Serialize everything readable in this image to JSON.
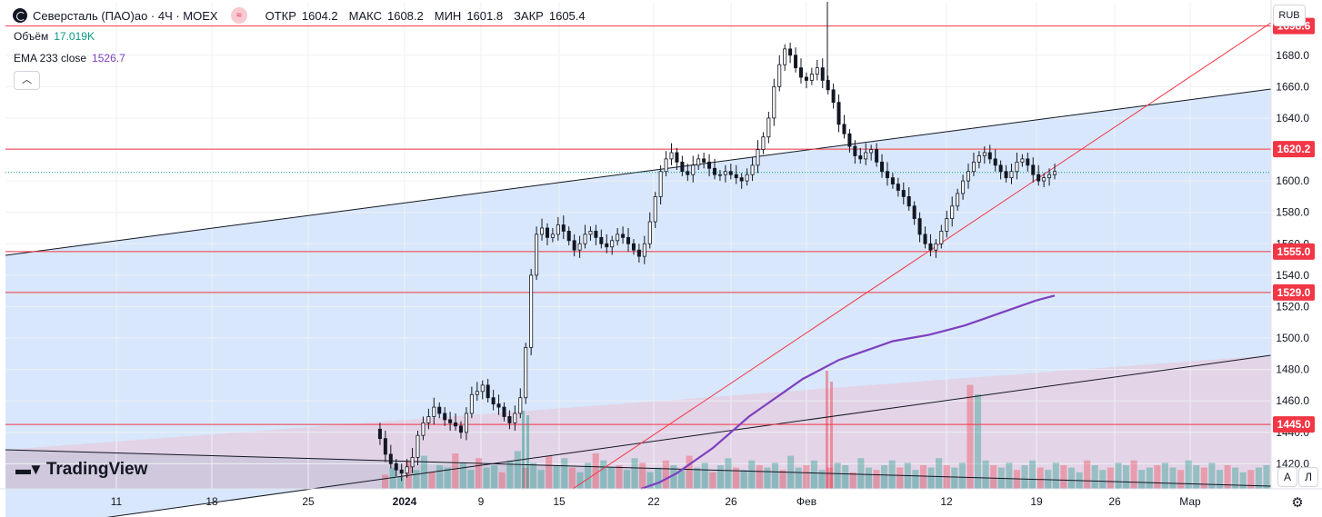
{
  "header": {
    "symbol": "Северсталь (ПАО)ао · 4Ч · MOEX",
    "badge_icon": "approx-equal-icon",
    "ohlc": [
      {
        "label": "ОТКР",
        "value": "1604.2"
      },
      {
        "label": "МАКС",
        "value": "1608.2"
      },
      {
        "label": "МИН",
        "value": "1601.8"
      },
      {
        "label": "ЗАКР",
        "value": "1605.4"
      }
    ]
  },
  "volume_legend": {
    "label": "Объём",
    "value": "17.019K"
  },
  "ema_legend": {
    "label": "EMA 233 close",
    "value": "1526.7"
  },
  "currency": "RUB",
  "corner_buttons": {
    "auto": "A",
    "log": "Л"
  },
  "brand": "TradingView",
  "chart_data": {
    "type": "candlestick",
    "y_axis": {
      "ticks": [
        1420,
        1440,
        1460,
        1480,
        1500,
        1520,
        1540,
        1560,
        1580,
        1600,
        1620,
        1640,
        1660,
        1680
      ],
      "range": [
        1404,
        1714
      ]
    },
    "x_axis": {
      "ticks": [
        {
          "label": "11",
          "bold": false
        },
        {
          "label": "18",
          "bold": false
        },
        {
          "label": "25",
          "bold": false
        },
        {
          "label": "2024",
          "bold": true
        },
        {
          "label": "9",
          "bold": false
        },
        {
          "label": "15",
          "bold": false
        },
        {
          "label": "22",
          "bold": false
        },
        {
          "label": "26",
          "bold": false
        },
        {
          "label": "Фев",
          "bold": false
        },
        {
          "label": "12",
          "bold": false
        },
        {
          "label": "19",
          "bold": false
        },
        {
          "label": "26",
          "bold": false
        },
        {
          "label": "Мар",
          "bold": false
        }
      ]
    },
    "horizontal_levels": [
      {
        "value": 1698.6,
        "label": "1698.6",
        "color": "#f23645"
      },
      {
        "value": 1620.2,
        "label": "1620.2",
        "color": "#f23645"
      },
      {
        "value": 1555.0,
        "label": "1555.0",
        "color": "#f23645"
      },
      {
        "value": 1529.0,
        "label": "1529.0",
        "color": "#f23645"
      },
      {
        "value": 1445.0,
        "label": "1445.0",
        "color": "#f23645"
      }
    ],
    "last_price": 1605.4,
    "candles_path": [
      1442,
      1436,
      1426,
      1420,
      1416,
      1414,
      1418,
      1424,
      1438,
      1446,
      1450,
      1456,
      1452,
      1448,
      1446,
      1444,
      1440,
      1452,
      1464,
      1466,
      1470,
      1462,
      1458,
      1456,
      1450,
      1446,
      1452,
      1462,
      1494,
      1540,
      1566,
      1570,
      1564,
      1566,
      1572,
      1568,
      1562,
      1556,
      1560,
      1566,
      1568,
      1564,
      1560,
      1558,
      1562,
      1566,
      1564,
      1560,
      1556,
      1552,
      1560,
      1574,
      1590,
      1606,
      1614,
      1618,
      1612,
      1606,
      1604,
      1610,
      1614,
      1612,
      1608,
      1604,
      1604,
      1606,
      1604,
      1602,
      1600,
      1604,
      1610,
      1620,
      1628,
      1640,
      1660,
      1674,
      1684,
      1680,
      1672,
      1666,
      1664,
      1668,
      1672,
      1664,
      1658,
      1650,
      1636,
      1630,
      1622,
      1616,
      1614,
      1618,
      1620,
      1612,
      1606,
      1602,
      1598,
      1594,
      1590,
      1584,
      1576,
      1566,
      1560,
      1556,
      1560,
      1568,
      1576,
      1584,
      1592,
      1600,
      1606,
      1612,
      1616,
      1618,
      1614,
      1610,
      1606,
      1602,
      1606,
      1612,
      1614,
      1610,
      1604,
      1600,
      1602,
      1604,
      1606
    ],
    "ema_path": [
      1404,
      1408,
      1414,
      1422,
      1430,
      1440,
      1450,
      1458,
      1466,
      1474,
      1480,
      1486,
      1490,
      1494,
      1498,
      1500,
      1502,
      1505,
      1508,
      1512,
      1516,
      1520,
      1524,
      1527
    ],
    "volume_profile": [
      6,
      9,
      5,
      12,
      8,
      14,
      7,
      10,
      9,
      15,
      11,
      8,
      13,
      9,
      10,
      7,
      12,
      16,
      9,
      11,
      8,
      14,
      10,
      13,
      9,
      7,
      11,
      15,
      12,
      9,
      10,
      8,
      13,
      11,
      7,
      9,
      12,
      10,
      8,
      14,
      9,
      11,
      7,
      10,
      13,
      9,
      8,
      12,
      10,
      9,
      11,
      8,
      14,
      9,
      10,
      12,
      8,
      9,
      11,
      10,
      7,
      13,
      9,
      8,
      10,
      12,
      9,
      11,
      8,
      10,
      9,
      13,
      10,
      9,
      11,
      44,
      40,
      12,
      10,
      9,
      11,
      8,
      10,
      12,
      9,
      8,
      11,
      10,
      9,
      7,
      12,
      10,
      8,
      9,
      11,
      10,
      12,
      8,
      9,
      10,
      11,
      9,
      8,
      12,
      10,
      9,
      11,
      8,
      10,
      9,
      7,
      8,
      9,
      10
    ]
  }
}
